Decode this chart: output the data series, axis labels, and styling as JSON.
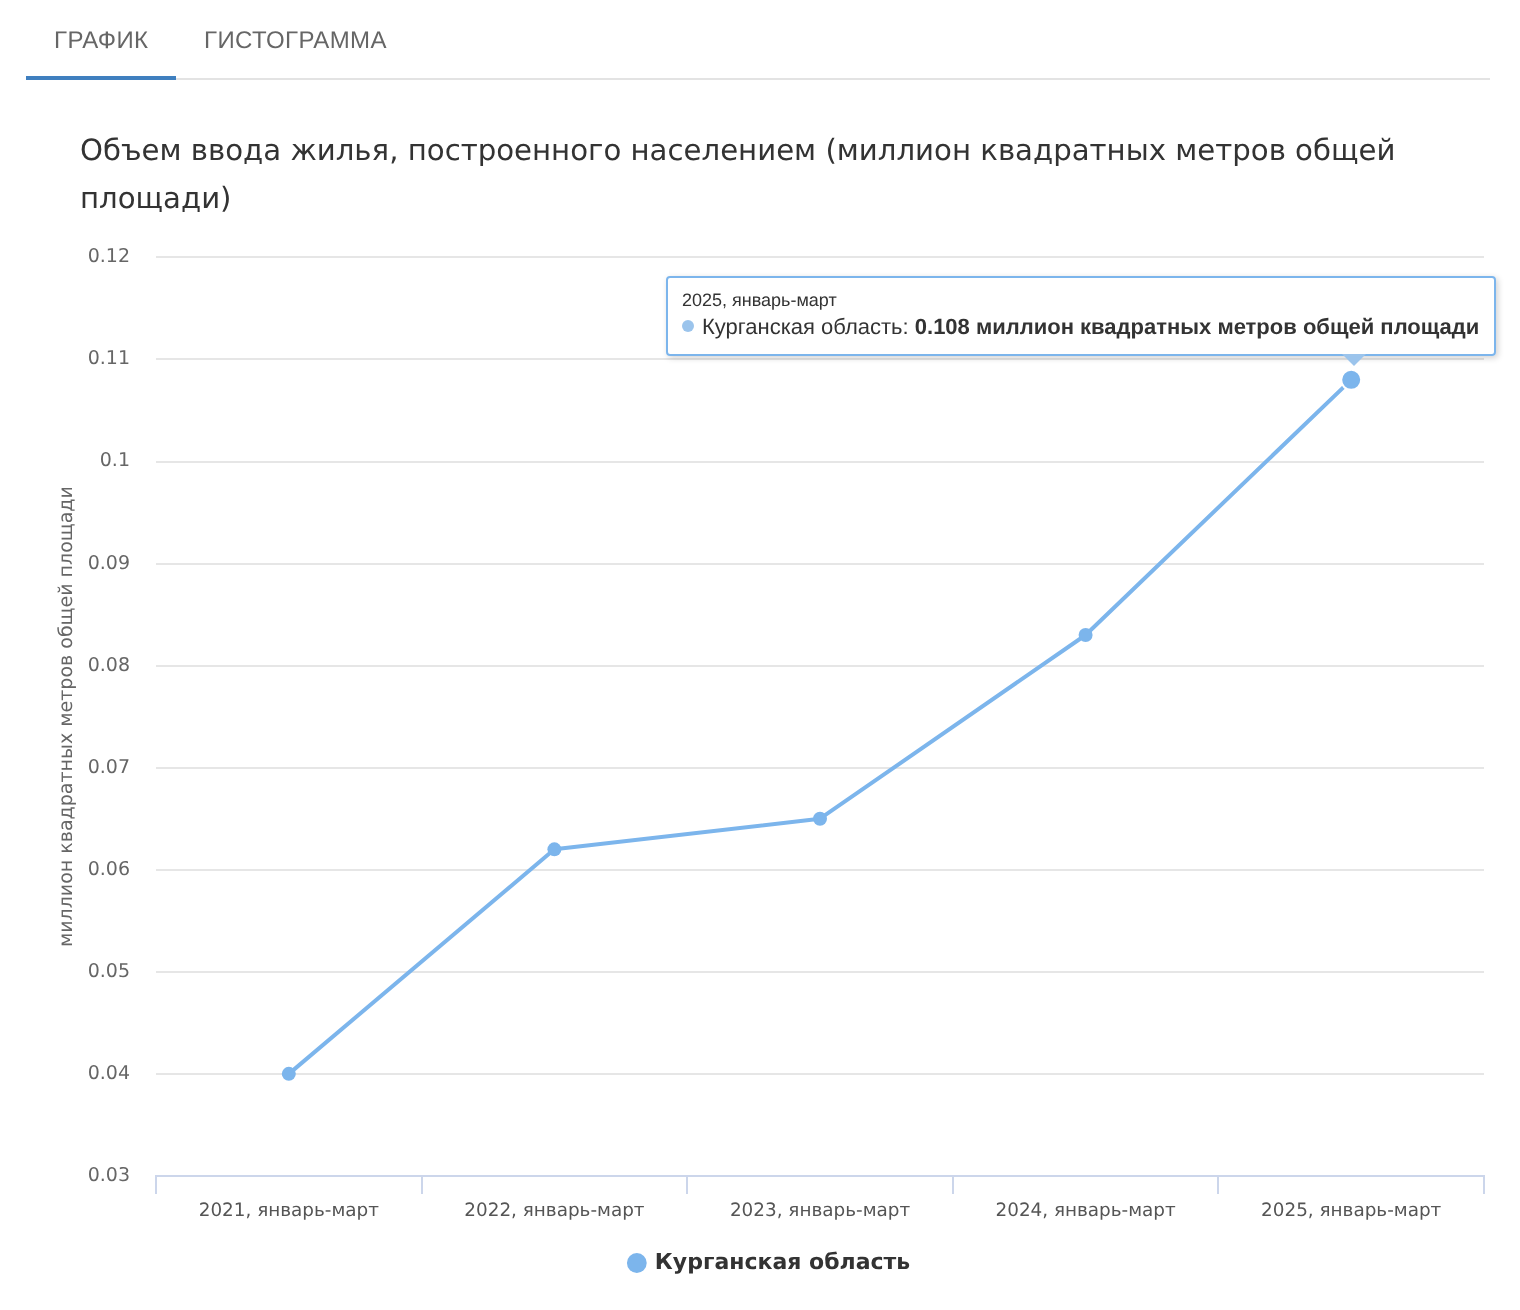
{
  "chart_data": {
    "type": "line",
    "title": "Объем ввода жилья, построенного населением (миллион квадратных метров общей площади)",
    "ylabel": "миллион квадратных метров общей площади",
    "categories": [
      "2021, январь-март",
      "2022, январь-март",
      "2023, январь-март",
      "2024, январь-март",
      "2025, январь-март"
    ],
    "series": [
      {
        "name": "Курганская область",
        "color": "#7cb5ec",
        "values": [
          0.04,
          0.062,
          0.065,
          0.083,
          0.108
        ]
      }
    ],
    "ylim": [
      0.03,
      0.12
    ],
    "yticks": [
      0.03,
      0.04,
      0.05,
      0.06,
      0.07,
      0.08,
      0.09,
      0.1,
      0.11,
      0.12
    ],
    "grid": "y",
    "legend": "bottom",
    "marker": "circle",
    "line_style": "solid",
    "annotations": [
      "ГРАФИК",
      "ГИСТОГРАММА",
      {
        "text": "2025, январь-март\nКурганская область: 0.108 миллион квадратных метров общей площади",
        "x": "2025, январь-март",
        "y": 0.108
      }
    ]
  }
}
